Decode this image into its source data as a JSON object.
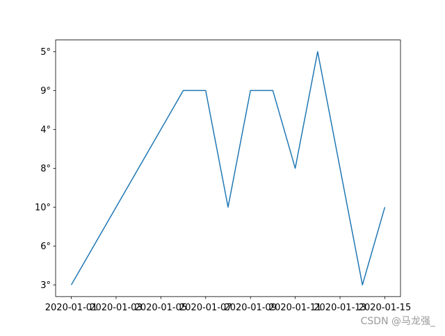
{
  "chart_data": {
    "type": "line",
    "title": "",
    "xlabel": "",
    "ylabel": "",
    "x": [
      "2020-01-01",
      "2020-01-02",
      "2020-01-03",
      "2020-01-04",
      "2020-01-05",
      "2020-01-06",
      "2020-01-07",
      "2020-01-08",
      "2020-01-09",
      "2020-01-10",
      "2020-01-11",
      "2020-01-12",
      "2020-01-13",
      "2020-01-14",
      "2020-01-15"
    ],
    "y_categories": [
      "3°",
      "6°",
      "10°",
      "8°",
      "4°",
      "9°",
      "5°"
    ],
    "series": [
      {
        "values": [
          "3°",
          "6°",
          "10°",
          "8°",
          "4°",
          "9°",
          "9°",
          "10°",
          "9°",
          "9°",
          "8°",
          "5°",
          "8°",
          "3°",
          "10°"
        ],
        "color": "#1f77b4"
      }
    ],
    "x_tick_labels": [
      "2020-01-01",
      "2020-01-03",
      "2020-01-05",
      "2020-01-07",
      "2020-01-09",
      "2020-01-11",
      "2020-01-13",
      "2020-01-15"
    ],
    "grid": false
  },
  "watermark": "CSDN @马龙强_"
}
